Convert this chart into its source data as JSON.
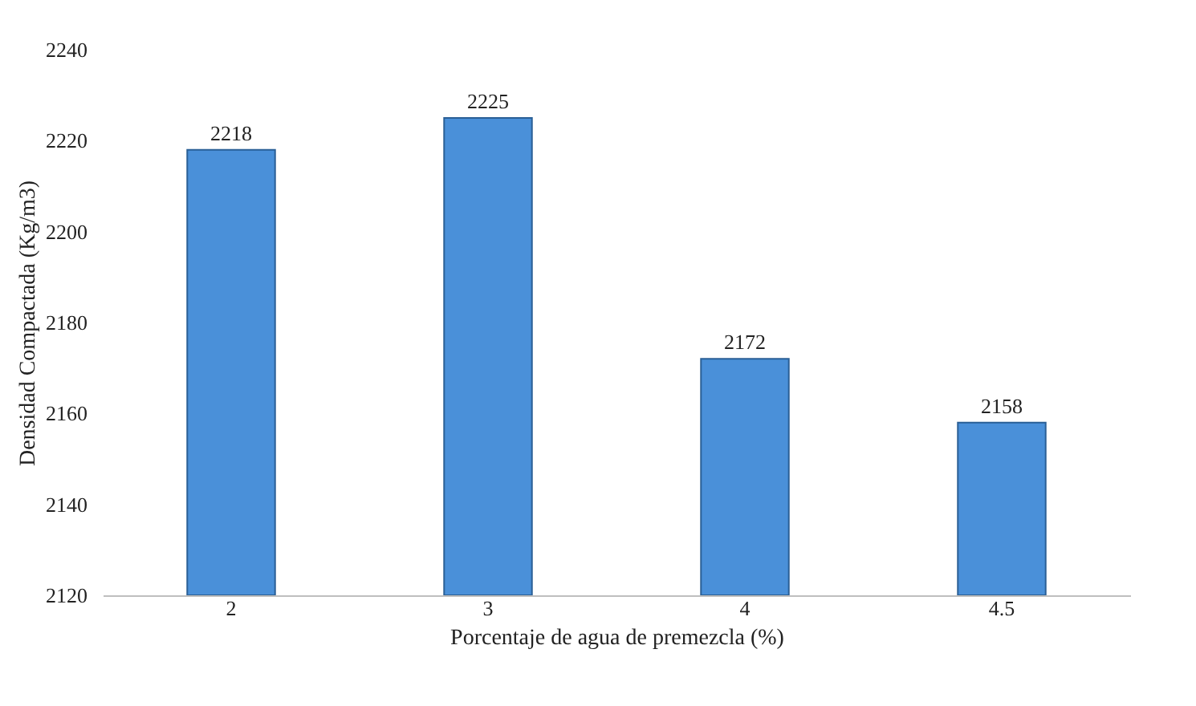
{
  "chart_data": {
    "type": "bar",
    "xlabel": "Porcentaje de agua de premezcla (%)",
    "ylabel": "Densidad Compactada (Kg/m3)",
    "categories": [
      "2",
      "3",
      "4",
      "4.5"
    ],
    "values": [
      2218,
      2225,
      2172,
      2158
    ],
    "color": "#4a90d9",
    "ylim": [
      2120,
      2240
    ],
    "yticks": [
      2120,
      2140,
      2160,
      2180,
      2200,
      2220,
      2240
    ],
    "data_labels": true,
    "grid": false
  }
}
